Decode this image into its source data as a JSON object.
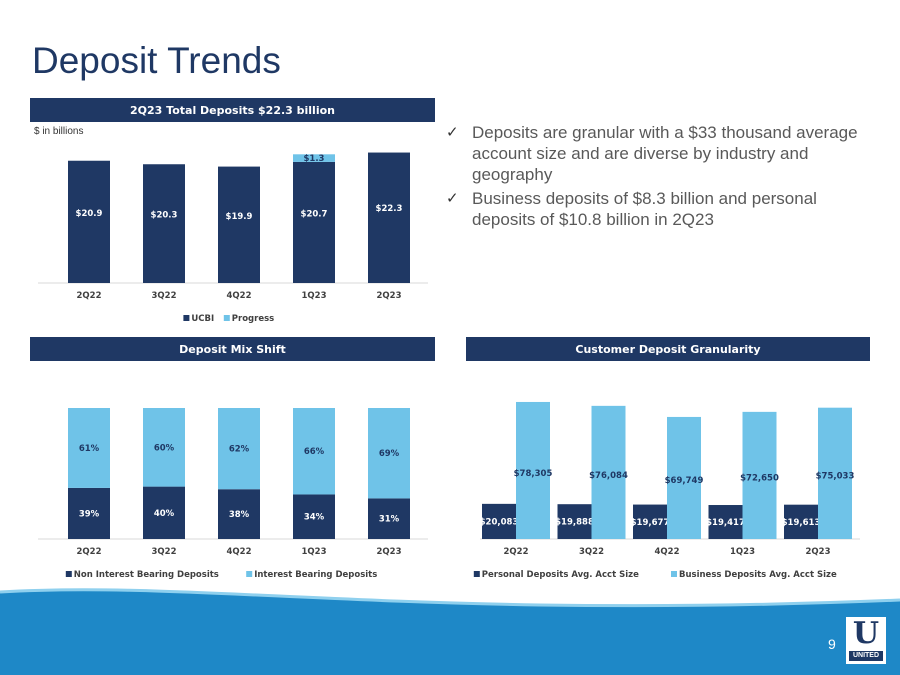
{
  "page": {
    "title": "Deposit Trends",
    "page_number": "9",
    "logo_text": "UNITED",
    "logo_letter": "U"
  },
  "bullets": [
    "Deposits are granular with a $33 thousand average account size and are diverse by industry and geography",
    "Business deposits of $8.3 billion and personal deposits of $10.8 billion in 2Q23"
  ],
  "colors": {
    "navy": "#1f3864",
    "light_blue": "#6fc3e8",
    "footer_blue": "#1e88c7"
  },
  "chart_data": [
    {
      "type": "bar",
      "stacked": true,
      "title": "2Q23 Total Deposits $22.3 billion",
      "unit_note": "$ in billions",
      "categories": [
        "2Q22",
        "3Q22",
        "4Q22",
        "1Q23",
        "2Q23"
      ],
      "series": [
        {
          "name": "UCBI",
          "values": [
            20.9,
            20.3,
            19.9,
            20.7,
            22.3
          ],
          "labels": [
            "$20.9",
            "$20.3",
            "$19.9",
            "$20.7",
            "$22.3"
          ]
        },
        {
          "name": "Progress",
          "values": [
            0,
            0,
            0,
            1.3,
            0
          ],
          "labels": [
            "",
            "",
            "",
            "$1.3",
            ""
          ]
        }
      ],
      "legend": "bottom"
    },
    {
      "type": "bar",
      "stacked": true,
      "percent": true,
      "title": "Deposit Mix Shift",
      "categories": [
        "2Q22",
        "3Q22",
        "4Q22",
        "1Q23",
        "2Q23"
      ],
      "series": [
        {
          "name": "Non Interest Bearing Deposits",
          "values": [
            39,
            40,
            38,
            34,
            31
          ],
          "labels": [
            "39%",
            "40%",
            "38%",
            "34%",
            "31%"
          ]
        },
        {
          "name": "Interest Bearing Deposits",
          "values": [
            61,
            60,
            62,
            66,
            69
          ],
          "labels": [
            "61%",
            "60%",
            "62%",
            "66%",
            "69%"
          ]
        }
      ],
      "legend": "bottom"
    },
    {
      "type": "bar",
      "grouped": true,
      "title": "Customer Deposit Granularity",
      "categories": [
        "2Q22",
        "3Q22",
        "4Q22",
        "1Q23",
        "2Q23"
      ],
      "series": [
        {
          "name": "Personal Deposits Avg. Acct Size",
          "values": [
            20083,
            19888,
            19677,
            19417,
            19613
          ],
          "labels": [
            "$20,083",
            "$19,888",
            "$19,677",
            "$19,417",
            "$19,613"
          ]
        },
        {
          "name": "Business Deposits Avg. Acct Size",
          "values": [
            78305,
            76084,
            69749,
            72650,
            75033
          ],
          "labels": [
            "$78,305",
            "$76,084",
            "$69,749",
            "$72,650",
            "$75,033"
          ]
        }
      ],
      "legend": "bottom"
    }
  ]
}
